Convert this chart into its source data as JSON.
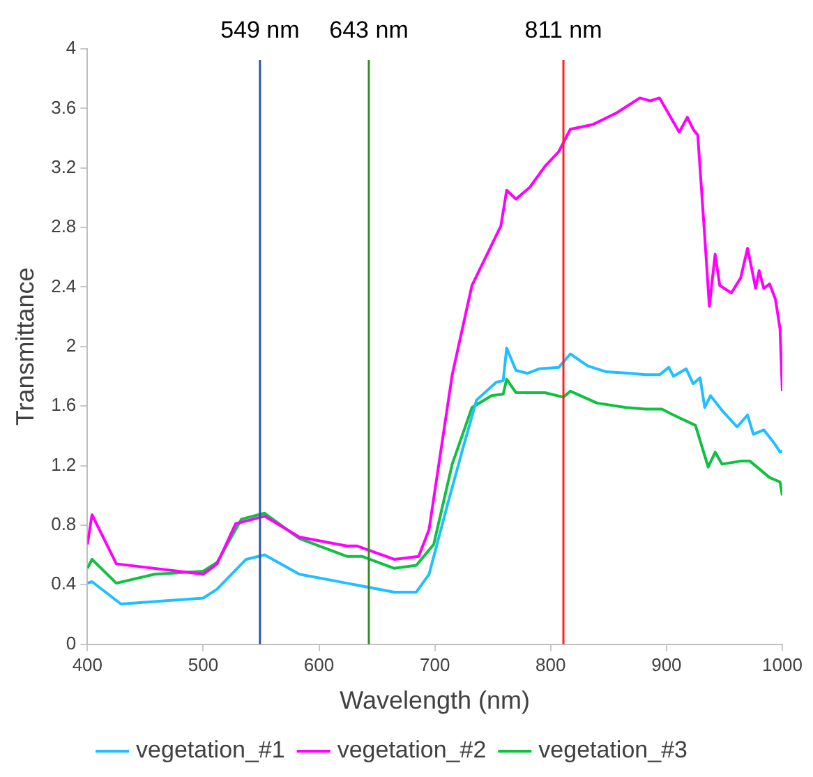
{
  "chart_data": {
    "type": "line",
    "xlabel": "Wavelength (nm)",
    "ylabel": "Transmittance",
    "xlim": [
      400,
      1000
    ],
    "xticks": [
      400,
      500,
      600,
      700,
      800,
      900,
      1000
    ],
    "ylim": [
      0,
      4
    ],
    "yticks": [
      0,
      0.4,
      0.8,
      1.2,
      1.6,
      2,
      2.4,
      2.8,
      3.2,
      3.6,
      4
    ],
    "grid": false,
    "legend": "bottom",
    "marker": "none",
    "line_style": "solid",
    "ref_lines": [
      {
        "axis": "x",
        "value": 549,
        "label": "549 nm",
        "color": "#2f55a4"
      },
      {
        "axis": "x",
        "value": 643,
        "label": "643 nm",
        "color": "#3a8a2a"
      },
      {
        "axis": "x",
        "value": 811,
        "label": "811 nm",
        "color": "#ff2020"
      }
    ],
    "series": [
      {
        "name": "vegetation_#1",
        "color": "#20bfff",
        "x": [
          400,
          404,
          429,
          500,
          512,
          537,
          553,
          583,
          624,
          665,
          684,
          695,
          711,
          724,
          736,
          753,
          759,
          762,
          770,
          780,
          790,
          807,
          817,
          832,
          848,
          869,
          882,
          894,
          902,
          906,
          917,
          923,
          929,
          933,
          938,
          948,
          961,
          970,
          975,
          984,
          994,
          998,
          1000
        ],
        "values": [
          0.41,
          0.42,
          0.27,
          0.31,
          0.37,
          0.57,
          0.6,
          0.47,
          0.41,
          0.35,
          0.35,
          0.47,
          0.94,
          1.31,
          1.64,
          1.76,
          1.77,
          1.99,
          1.84,
          1.82,
          1.85,
          1.86,
          1.95,
          1.87,
          1.83,
          1.82,
          1.81,
          1.81,
          1.86,
          1.8,
          1.85,
          1.75,
          1.79,
          1.59,
          1.67,
          1.57,
          1.46,
          1.54,
          1.41,
          1.44,
          1.34,
          1.29,
          1.3
        ]
      },
      {
        "name": "vegetation_#2",
        "color": "#ff00ff",
        "x": [
          400,
          404,
          425,
          500,
          512,
          528,
          553,
          583,
          624,
          633,
          665,
          686,
          695,
          715,
          732,
          757,
          762,
          770,
          782,
          795,
          807,
          817,
          836,
          857,
          877,
          886,
          894,
          911,
          918,
          923,
          927,
          933,
          937,
          942,
          946,
          956,
          964,
          970,
          977,
          980,
          984,
          989,
          994,
          998,
          1000
        ],
        "values": [
          0.67,
          0.87,
          0.54,
          0.47,
          0.54,
          0.81,
          0.86,
          0.72,
          0.66,
          0.66,
          0.57,
          0.59,
          0.77,
          1.81,
          2.41,
          2.81,
          3.05,
          2.99,
          3.07,
          3.21,
          3.31,
          3.46,
          3.49,
          3.57,
          3.67,
          3.65,
          3.67,
          3.44,
          3.54,
          3.46,
          3.42,
          2.74,
          2.27,
          2.62,
          2.41,
          2.36,
          2.46,
          2.66,
          2.39,
          2.51,
          2.39,
          2.42,
          2.32,
          2.12,
          1.7
        ]
      },
      {
        "name": "vegetation_#3",
        "color": "#10c040",
        "x": [
          400,
          404,
          425,
          458,
          500,
          512,
          533,
          553,
          583,
          624,
          637,
          665,
          684,
          699,
          715,
          732,
          749,
          759,
          762,
          770,
          795,
          811,
          817,
          840,
          865,
          882,
          896,
          906,
          925,
          936,
          942,
          948,
          964,
          972,
          989,
          998,
          1000
        ],
        "values": [
          0.51,
          0.57,
          0.41,
          0.47,
          0.49,
          0.55,
          0.84,
          0.88,
          0.71,
          0.59,
          0.59,
          0.51,
          0.53,
          0.67,
          1.21,
          1.59,
          1.67,
          1.68,
          1.78,
          1.69,
          1.69,
          1.66,
          1.7,
          1.62,
          1.59,
          1.58,
          1.58,
          1.54,
          1.47,
          1.19,
          1.29,
          1.21,
          1.23,
          1.23,
          1.12,
          1.09,
          1.0
        ]
      }
    ]
  }
}
